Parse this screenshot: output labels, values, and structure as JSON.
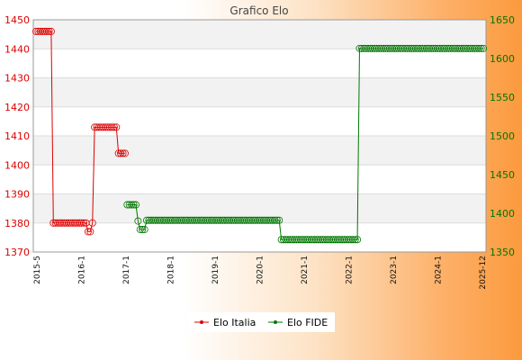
{
  "chart_data": {
    "type": "line",
    "title": "Grafico Elo",
    "xlabel": "",
    "ylabel": "",
    "grid": true,
    "legend": "bottom",
    "y_left_lim": [
      1370,
      1450
    ],
    "y_left_ticks": [
      1370,
      1380,
      1390,
      1400,
      1410,
      1420,
      1430,
      1440,
      1450
    ],
    "y_right_lim": [
      1350,
      1650
    ],
    "y_right_ticks": [
      1350,
      1400,
      1450,
      1500,
      1550,
      1600,
      1650
    ],
    "x_tick_labels": [
      "2015-5",
      "2016-1",
      "2017-1",
      "2018-1",
      "2019-1",
      "2020-1",
      "2021-1",
      "2022-1",
      "2023-1",
      "2024-1",
      "2025-12"
    ],
    "series": [
      {
        "name": "Elo Italia",
        "axis": "left",
        "color": "#dd0000",
        "values": [
          1446,
          1446,
          1446,
          1446,
          1446,
          1446,
          1446,
          1446,
          1380,
          1380,
          1380,
          1380,
          1380,
          1380,
          1380,
          1380,
          1380,
          1380,
          1380,
          1380,
          1380,
          1380,
          1380,
          1380,
          1377,
          1377,
          1380,
          1413,
          1413,
          1413,
          1413,
          1413,
          1413,
          1413,
          1413,
          1413,
          1413,
          1413,
          1404,
          1404,
          1404,
          1404
        ]
      },
      {
        "name": "Elo FIDE",
        "axis": "right",
        "color": "#007700",
        "values": [
          null,
          null,
          null,
          null,
          null,
          null,
          null,
          null,
          null,
          null,
          null,
          null,
          null,
          null,
          null,
          null,
          null,
          null,
          null,
          null,
          null,
          null,
          null,
          null,
          null,
          null,
          null,
          null,
          null,
          null,
          null,
          null,
          null,
          null,
          null,
          null,
          null,
          null,
          null,
          null,
          null,
          null,
          1411,
          1411,
          1411,
          1411,
          1411,
          1390,
          1379,
          1379,
          1379,
          1391,
          1391,
          1391,
          1391,
          1391,
          1391,
          1391,
          1391,
          1391,
          1391,
          1391,
          1391,
          1391,
          1391,
          1391,
          1391,
          1391,
          1391,
          1391,
          1391,
          1391,
          1391,
          1391,
          1391,
          1391,
          1391,
          1391,
          1391,
          1391,
          1391,
          1391,
          1391,
          1391,
          1391,
          1391,
          1391,
          1391,
          1391,
          1391,
          1391,
          1391,
          1391,
          1391,
          1391,
          1391,
          1391,
          1391,
          1391,
          1391,
          1391,
          1391,
          1391,
          1391,
          1391,
          1391,
          1391,
          1391,
          1391,
          1391,
          1391,
          1391,
          1391,
          1366,
          1366,
          1366,
          1366,
          1366,
          1366,
          1366,
          1366,
          1366,
          1366,
          1366,
          1366,
          1366,
          1366,
          1366,
          1366,
          1366,
          1366,
          1366,
          1366,
          1366,
          1366,
          1366,
          1366,
          1366,
          1366,
          1366,
          1366,
          1366,
          1366,
          1366,
          1366,
          1366,
          1366,
          1366,
          1366,
          1613,
          1613,
          1613,
          1613,
          1613,
          1613,
          1613,
          1613,
          1613,
          1613,
          1613,
          1613,
          1613,
          1613,
          1613,
          1613,
          1613,
          1613,
          1613,
          1613,
          1613,
          1613,
          1613,
          1613,
          1613,
          1613,
          1613,
          1613,
          1613,
          1613,
          1613,
          1613,
          1613,
          1613,
          1613,
          1613,
          1613,
          1613,
          1613,
          1613,
          1613,
          1613,
          1613,
          1613,
          1613,
          1613,
          1613,
          1613,
          1613,
          1613,
          1613,
          1613,
          1613,
          1613,
          1613,
          1613,
          1613,
          1613
        ]
      }
    ]
  },
  "colors": {
    "left_axis": "#dd0000",
    "right_axis": "#007700",
    "band": "#f2f2f2",
    "plot_bg": "#ffffff"
  }
}
